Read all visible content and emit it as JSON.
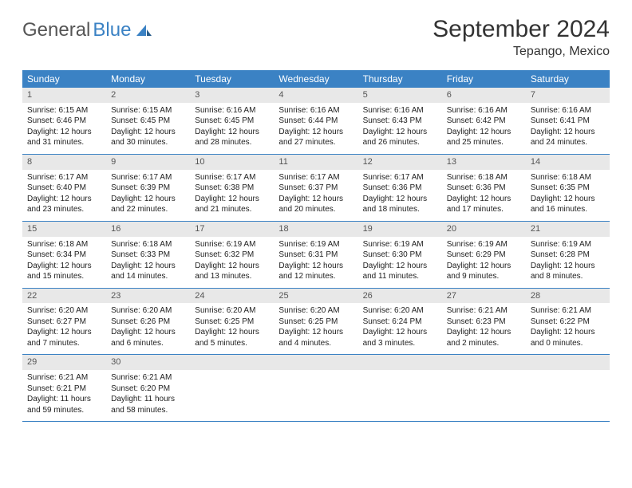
{
  "logo": {
    "text1": "General",
    "text2": "Blue"
  },
  "title": "September 2024",
  "location": "Tepango, Mexico",
  "colors": {
    "header_bg": "#3b82c4",
    "daynum_bg": "#e8e8e8",
    "text": "#222222",
    "border": "#3b82c4"
  },
  "day_names": [
    "Sunday",
    "Monday",
    "Tuesday",
    "Wednesday",
    "Thursday",
    "Friday",
    "Saturday"
  ],
  "weeks": [
    [
      {
        "n": "1",
        "rise": "Sunrise: 6:15 AM",
        "set": "Sunset: 6:46 PM",
        "d1": "Daylight: 12 hours",
        "d2": "and 31 minutes."
      },
      {
        "n": "2",
        "rise": "Sunrise: 6:15 AM",
        "set": "Sunset: 6:45 PM",
        "d1": "Daylight: 12 hours",
        "d2": "and 30 minutes."
      },
      {
        "n": "3",
        "rise": "Sunrise: 6:16 AM",
        "set": "Sunset: 6:45 PM",
        "d1": "Daylight: 12 hours",
        "d2": "and 28 minutes."
      },
      {
        "n": "4",
        "rise": "Sunrise: 6:16 AM",
        "set": "Sunset: 6:44 PM",
        "d1": "Daylight: 12 hours",
        "d2": "and 27 minutes."
      },
      {
        "n": "5",
        "rise": "Sunrise: 6:16 AM",
        "set": "Sunset: 6:43 PM",
        "d1": "Daylight: 12 hours",
        "d2": "and 26 minutes."
      },
      {
        "n": "6",
        "rise": "Sunrise: 6:16 AM",
        "set": "Sunset: 6:42 PM",
        "d1": "Daylight: 12 hours",
        "d2": "and 25 minutes."
      },
      {
        "n": "7",
        "rise": "Sunrise: 6:16 AM",
        "set": "Sunset: 6:41 PM",
        "d1": "Daylight: 12 hours",
        "d2": "and 24 minutes."
      }
    ],
    [
      {
        "n": "8",
        "rise": "Sunrise: 6:17 AM",
        "set": "Sunset: 6:40 PM",
        "d1": "Daylight: 12 hours",
        "d2": "and 23 minutes."
      },
      {
        "n": "9",
        "rise": "Sunrise: 6:17 AM",
        "set": "Sunset: 6:39 PM",
        "d1": "Daylight: 12 hours",
        "d2": "and 22 minutes."
      },
      {
        "n": "10",
        "rise": "Sunrise: 6:17 AM",
        "set": "Sunset: 6:38 PM",
        "d1": "Daylight: 12 hours",
        "d2": "and 21 minutes."
      },
      {
        "n": "11",
        "rise": "Sunrise: 6:17 AM",
        "set": "Sunset: 6:37 PM",
        "d1": "Daylight: 12 hours",
        "d2": "and 20 minutes."
      },
      {
        "n": "12",
        "rise": "Sunrise: 6:17 AM",
        "set": "Sunset: 6:36 PM",
        "d1": "Daylight: 12 hours",
        "d2": "and 18 minutes."
      },
      {
        "n": "13",
        "rise": "Sunrise: 6:18 AM",
        "set": "Sunset: 6:36 PM",
        "d1": "Daylight: 12 hours",
        "d2": "and 17 minutes."
      },
      {
        "n": "14",
        "rise": "Sunrise: 6:18 AM",
        "set": "Sunset: 6:35 PM",
        "d1": "Daylight: 12 hours",
        "d2": "and 16 minutes."
      }
    ],
    [
      {
        "n": "15",
        "rise": "Sunrise: 6:18 AM",
        "set": "Sunset: 6:34 PM",
        "d1": "Daylight: 12 hours",
        "d2": "and 15 minutes."
      },
      {
        "n": "16",
        "rise": "Sunrise: 6:18 AM",
        "set": "Sunset: 6:33 PM",
        "d1": "Daylight: 12 hours",
        "d2": "and 14 minutes."
      },
      {
        "n": "17",
        "rise": "Sunrise: 6:19 AM",
        "set": "Sunset: 6:32 PM",
        "d1": "Daylight: 12 hours",
        "d2": "and 13 minutes."
      },
      {
        "n": "18",
        "rise": "Sunrise: 6:19 AM",
        "set": "Sunset: 6:31 PM",
        "d1": "Daylight: 12 hours",
        "d2": "and 12 minutes."
      },
      {
        "n": "19",
        "rise": "Sunrise: 6:19 AM",
        "set": "Sunset: 6:30 PM",
        "d1": "Daylight: 12 hours",
        "d2": "and 11 minutes."
      },
      {
        "n": "20",
        "rise": "Sunrise: 6:19 AM",
        "set": "Sunset: 6:29 PM",
        "d1": "Daylight: 12 hours",
        "d2": "and 9 minutes."
      },
      {
        "n": "21",
        "rise": "Sunrise: 6:19 AM",
        "set": "Sunset: 6:28 PM",
        "d1": "Daylight: 12 hours",
        "d2": "and 8 minutes."
      }
    ],
    [
      {
        "n": "22",
        "rise": "Sunrise: 6:20 AM",
        "set": "Sunset: 6:27 PM",
        "d1": "Daylight: 12 hours",
        "d2": "and 7 minutes."
      },
      {
        "n": "23",
        "rise": "Sunrise: 6:20 AM",
        "set": "Sunset: 6:26 PM",
        "d1": "Daylight: 12 hours",
        "d2": "and 6 minutes."
      },
      {
        "n": "24",
        "rise": "Sunrise: 6:20 AM",
        "set": "Sunset: 6:25 PM",
        "d1": "Daylight: 12 hours",
        "d2": "and 5 minutes."
      },
      {
        "n": "25",
        "rise": "Sunrise: 6:20 AM",
        "set": "Sunset: 6:25 PM",
        "d1": "Daylight: 12 hours",
        "d2": "and 4 minutes."
      },
      {
        "n": "26",
        "rise": "Sunrise: 6:20 AM",
        "set": "Sunset: 6:24 PM",
        "d1": "Daylight: 12 hours",
        "d2": "and 3 minutes."
      },
      {
        "n": "27",
        "rise": "Sunrise: 6:21 AM",
        "set": "Sunset: 6:23 PM",
        "d1": "Daylight: 12 hours",
        "d2": "and 2 minutes."
      },
      {
        "n": "28",
        "rise": "Sunrise: 6:21 AM",
        "set": "Sunset: 6:22 PM",
        "d1": "Daylight: 12 hours",
        "d2": "and 0 minutes."
      }
    ],
    [
      {
        "n": "29",
        "rise": "Sunrise: 6:21 AM",
        "set": "Sunset: 6:21 PM",
        "d1": "Daylight: 11 hours",
        "d2": "and 59 minutes."
      },
      {
        "n": "30",
        "rise": "Sunrise: 6:21 AM",
        "set": "Sunset: 6:20 PM",
        "d1": "Daylight: 11 hours",
        "d2": "and 58 minutes."
      },
      null,
      null,
      null,
      null,
      null
    ]
  ]
}
